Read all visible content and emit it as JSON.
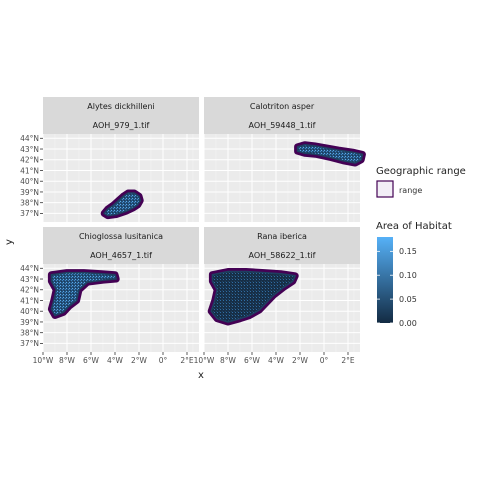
{
  "chart_data": {
    "type": "heatmap",
    "xlabel": "x",
    "ylabel": "y",
    "xlim": [
      -10,
      3
    ],
    "ylim": [
      36.2,
      44.4
    ],
    "x_ticks": [
      -10,
      -8,
      -6,
      -4,
      -2,
      0,
      2
    ],
    "x_tick_labels": [
      "10°W",
      "8°W",
      "6°W",
      "4°W",
      "2°W",
      "0°",
      "2°E"
    ],
    "y_ticks": [
      37,
      38,
      39,
      40,
      41,
      42,
      43,
      44
    ],
    "y_tick_labels": [
      "37°N",
      "38°N",
      "39°N",
      "40°N",
      "41°N",
      "42°N",
      "43°N",
      "44°N"
    ],
    "grid": true,
    "legend": {
      "placement": "right",
      "range_title": "Geographic range",
      "range_entry": "range",
      "range_color": "#440154",
      "fill_title": "Area of Habitat",
      "fill_ticks": [
        0.0,
        0.05,
        0.1,
        0.15
      ],
      "fill_tick_labels": [
        "0.00",
        "0.05",
        "0.10",
        "0.15"
      ],
      "fill_range": [
        0,
        0.18
      ],
      "fill_low_color": "#132b43",
      "fill_high_color": "#56b1f7"
    },
    "panels": [
      {
        "species": "Alytes dickhilleni",
        "file": "AOH_979_1.tif",
        "range_outline": [
          [
            -4.6,
            36.8
          ],
          [
            -3.9,
            36.9
          ],
          [
            -3.1,
            37.2
          ],
          [
            -2.5,
            37.5
          ],
          [
            -2.1,
            37.8
          ],
          [
            -1.9,
            38.2
          ],
          [
            -2.0,
            38.6
          ],
          [
            -2.4,
            38.9
          ],
          [
            -2.9,
            38.9
          ],
          [
            -3.3,
            38.6
          ],
          [
            -3.7,
            38.2
          ],
          [
            -4.1,
            37.8
          ],
          [
            -4.6,
            37.4
          ],
          [
            -4.9,
            37.0
          ]
        ],
        "mean_habitat": 0.08
      },
      {
        "species": "Calotriton asper",
        "file": "AOH_59448_1.tif",
        "range_outline": [
          [
            -2.2,
            43.2
          ],
          [
            -1.6,
            43.4
          ],
          [
            -0.8,
            43.3
          ],
          [
            0.2,
            43.1
          ],
          [
            1.2,
            42.9
          ],
          [
            2.4,
            42.7
          ],
          [
            3.2,
            42.5
          ],
          [
            3.1,
            42.0
          ],
          [
            2.6,
            41.7
          ],
          [
            1.6,
            41.9
          ],
          [
            0.6,
            42.2
          ],
          [
            -0.6,
            42.5
          ],
          [
            -1.6,
            42.6
          ],
          [
            -2.2,
            42.8
          ]
        ],
        "mean_habitat": 0.09
      },
      {
        "species": "Chioglossa lusitanica",
        "file": "AOH_4657_1.tif",
        "range_outline": [
          [
            -9.3,
            43.4
          ],
          [
            -8.0,
            43.6
          ],
          [
            -6.6,
            43.6
          ],
          [
            -5.1,
            43.5
          ],
          [
            -4.0,
            43.4
          ],
          [
            -3.9,
            43.0
          ],
          [
            -5.0,
            42.9
          ],
          [
            -6.3,
            42.7
          ],
          [
            -7.0,
            42.0
          ],
          [
            -7.2,
            41.0
          ],
          [
            -7.8,
            40.5
          ],
          [
            -8.3,
            39.9
          ],
          [
            -9.0,
            39.6
          ],
          [
            -9.3,
            40.2
          ],
          [
            -9.1,
            41.0
          ],
          [
            -8.9,
            42.0
          ],
          [
            -9.3,
            42.8
          ]
        ],
        "mean_habitat": 0.1
      },
      {
        "species": "Rana iberica",
        "file": "AOH_58622_1.tif",
        "range_outline": [
          [
            -9.3,
            43.4
          ],
          [
            -8.0,
            43.7
          ],
          [
            -6.5,
            43.7
          ],
          [
            -5.0,
            43.6
          ],
          [
            -3.6,
            43.5
          ],
          [
            -2.4,
            43.3
          ],
          [
            -2.6,
            42.8
          ],
          [
            -3.4,
            42.2
          ],
          [
            -4.2,
            41.5
          ],
          [
            -4.8,
            40.8
          ],
          [
            -5.4,
            40.1
          ],
          [
            -6.2,
            39.6
          ],
          [
            -7.0,
            39.3
          ],
          [
            -8.0,
            39.0
          ],
          [
            -8.9,
            39.3
          ],
          [
            -9.4,
            40.0
          ],
          [
            -9.1,
            41.0
          ],
          [
            -8.9,
            42.0
          ],
          [
            -9.3,
            42.8
          ]
        ],
        "mean_habitat": 0.04
      }
    ]
  }
}
